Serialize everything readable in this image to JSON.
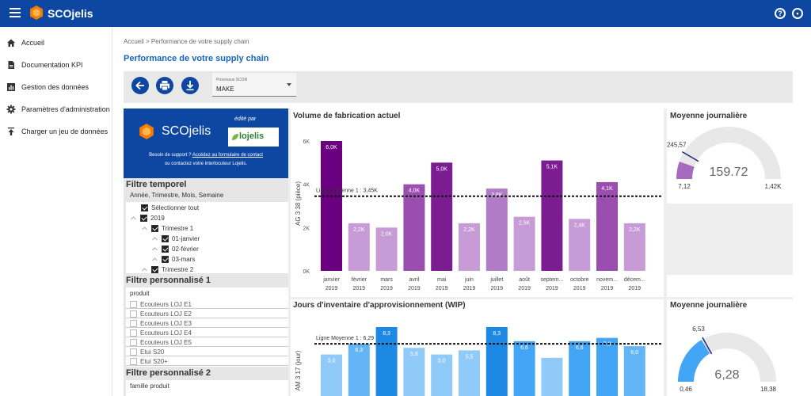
{
  "app": {
    "title": "SCOjelis"
  },
  "topbar": {
    "help_icon": "help-circle-icon",
    "account_icon": "account-circle-icon"
  },
  "sidebar": {
    "items": [
      {
        "label": "Accueil",
        "icon": "home-icon"
      },
      {
        "label": "Documentation KPI",
        "icon": "document-icon"
      },
      {
        "label": "Gestion des données",
        "icon": "bar-chart-icon"
      },
      {
        "label": "Paramètres d'administration",
        "icon": "gear-icon"
      },
      {
        "label": "Charger un jeu de données",
        "icon": "upload-icon"
      }
    ]
  },
  "breadcrumb": "Accueil > Performance de votre supply chain",
  "page_title": "Performance de votre supply chain",
  "toolbar": {
    "buttons": [
      "back-icon",
      "print-icon",
      "download-icon"
    ],
    "select": {
      "label": "Processus SCOR",
      "value": "MAKE"
    }
  },
  "promo": {
    "brand": "SCOjelis",
    "edited_by": "édité par",
    "partner": "lojelis",
    "support_text": "Besoin de support ? ",
    "support_link": "Accédez au formulaire de contact",
    "contact_text": "ou contactez votre interlocuteur Lojelis."
  },
  "filters": {
    "temporal": {
      "title": "Filtre temporel",
      "subtitle": "Année, Trimestre, Mois, Semaine",
      "items": [
        {
          "label": "Sélectionner tout",
          "checked": true
        },
        {
          "label": "2019",
          "checked": true
        },
        {
          "label": "Trimestre 1",
          "checked": true
        },
        {
          "label": "01-janvier",
          "checked": true
        },
        {
          "label": "02-février",
          "checked": true
        },
        {
          "label": "03-mars",
          "checked": true
        },
        {
          "label": "Trimestre 2",
          "checked": true
        }
      ]
    },
    "custom1": {
      "title": "Filtre personnalisé 1",
      "subtitle": "produit",
      "items": [
        "Ecouteurs LOJ E1",
        "Ecouteurs LOJ E2",
        "Ecouteurs LOJ E3",
        "Ecouteurs LOJ E4",
        "Ecouteurs LOJ E5",
        "Etui S20",
        "Etui S20+"
      ]
    },
    "custom2": {
      "title": "Filtre personnalisé 2",
      "subtitle": "famille produit"
    }
  },
  "cards": {
    "volume": {
      "title": "Volume de fabrication actuel",
      "ylabel": "AG 3 38 (pièce)",
      "avg_label": "Ligne Moyenne 1 : 3,45K"
    },
    "volume_gauge": {
      "title": "Moyenne journalière",
      "value": "159.72",
      "min": "7,12",
      "max": "1,42K",
      "target": "245,57",
      "value_num": 159.72,
      "min_num": 7.12,
      "max_num": 1420,
      "target_num": 245.57,
      "color": "#a66bbf"
    },
    "wip": {
      "title": "Jours d'inventaire d'approvisionnement (WIP)",
      "ylabel": "AM 3 17 (jour)",
      "avg_label": "Ligne Moyenne 1 : 6,29"
    },
    "wip_gauge": {
      "title": "Moyenne journalière",
      "value": "6,28",
      "min": "0,46",
      "max": "18,38",
      "target": "6,53",
      "value_num": 6.28,
      "min_num": 0.46,
      "max_num": 18.38,
      "target_num": 6.53,
      "color": "#42a5f5"
    }
  },
  "chart_data": [
    {
      "type": "bar",
      "title": "Volume de fabrication actuel",
      "ylabel": "AG 3 38 (pièce)",
      "ylim": [
        0,
        6000
      ],
      "yticks": [
        "0K",
        "2K",
        "4K",
        "6K"
      ],
      "categories": [
        "janvier 2019",
        "février 2019",
        "mars 2019",
        "avril 2019",
        "mai 2019",
        "juin 2019",
        "juillet 2019",
        "août 2019",
        "septem... 2019",
        "octobre 2019",
        "novem... 2019",
        "décem... 2019"
      ],
      "cat_line1": [
        "janvier",
        "février",
        "mars",
        "avril",
        "mai",
        "juin",
        "juillet",
        "août",
        "septem...",
        "octobre",
        "novem...",
        "décem..."
      ],
      "cat_line2": [
        "2019",
        "2019",
        "2019",
        "2019",
        "2019",
        "2019",
        "2019",
        "2019",
        "2019",
        "2019",
        "2019",
        "2019"
      ],
      "values": [
        6000,
        2200,
        2000,
        4000,
        5000,
        2200,
        3800,
        2500,
        5100,
        2400,
        4100,
        2200
      ],
      "labels": [
        "6,0K",
        "2,2K",
        "2,0K",
        "4,0K",
        "5,0K",
        "2,2K",
        "3,8K",
        "2,5K",
        "5,1K",
        "2,4K",
        "4,1K",
        "2,2K"
      ],
      "colors": [
        "#6a0080",
        "#c79bd6",
        "#c79bd6",
        "#9a4fb0",
        "#7b1d91",
        "#c79bd6",
        "#b07cc6",
        "#c79bd6",
        "#7b1d91",
        "#c79bd6",
        "#9a4fb0",
        "#c79bd6"
      ],
      "average": 3450
    },
    {
      "type": "bar",
      "title": "Jours d'inventaire d'approvisionnement (WIP)",
      "ylabel": "AM 3 17 (jour)",
      "ylim": [
        0,
        8.3
      ],
      "values": [
        5.0,
        6.3,
        8.3,
        5.8,
        5.0,
        5.5,
        8.3,
        6.6,
        4.6,
        6.6,
        7.0,
        6.0
      ],
      "labels": [
        "5,0",
        "6,3",
        "8,3",
        "5,8",
        "5,0",
        "5,5",
        "8,3",
        "6,6",
        "",
        "6,6",
        "7,0",
        "6,0"
      ],
      "colors": [
        "#90caf9",
        "#64b5f6",
        "#1e88e5",
        "#90caf9",
        "#90caf9",
        "#90caf9",
        "#1e88e5",
        "#42a5f5",
        "#90caf9",
        "#42a5f5",
        "#42a5f5",
        "#64b5f6"
      ],
      "average": 6.29
    }
  ]
}
